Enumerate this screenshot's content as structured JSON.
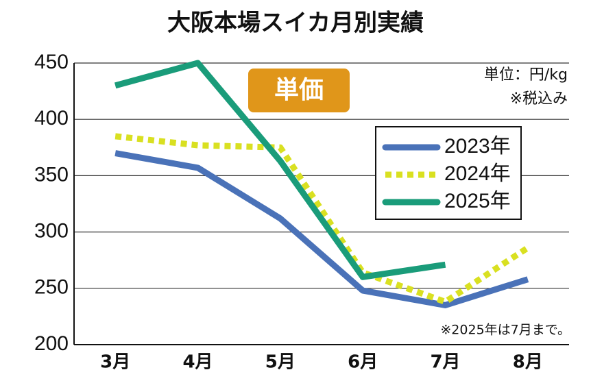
{
  "chart_data": {
    "type": "line",
    "title": "大阪本場スイカ月別実績",
    "categories": [
      "3月",
      "4月",
      "5月",
      "6月",
      "7月",
      "8月"
    ],
    "series": [
      {
        "name": "2023年",
        "color": "#4a72b8",
        "style": "solid",
        "values": [
          370,
          357,
          312,
          248,
          235,
          258
        ]
      },
      {
        "name": "2024年",
        "color": "#d9e021",
        "style": "dotted",
        "values": [
          385,
          377,
          375,
          264,
          238,
          286
        ]
      },
      {
        "name": "2025年",
        "color": "#1a9c7a",
        "style": "solid",
        "values": [
          430,
          450,
          363,
          260,
          271,
          null
        ]
      }
    ],
    "ylim": [
      200,
      450
    ],
    "yticks": [
      200,
      250,
      300,
      350,
      400,
      450
    ],
    "grid": true,
    "legend": "upper right",
    "badge": "単価",
    "unit": "単位：円/kg",
    "tax_note": "※税込み",
    "footnote": "※2025年は7月まで。"
  }
}
